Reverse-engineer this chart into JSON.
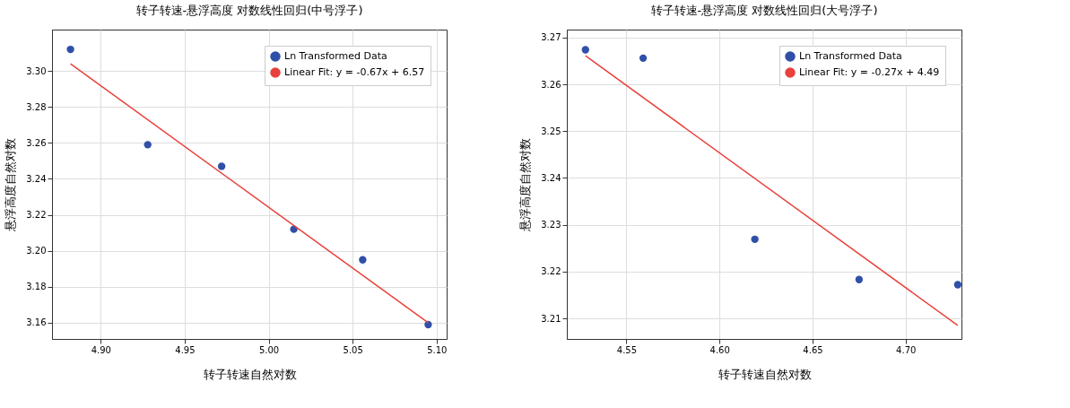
{
  "chart_data": [
    {
      "type": "scatter",
      "title": "转子转速-悬浮高度 对数线性回归(中号浮子)",
      "xlabel": "转子转速自然对数",
      "ylabel": "悬浮高度自然对数",
      "series": [
        {
          "name": "Ln Transformed Data",
          "marker": "circle",
          "color": "#3050a8",
          "x": [
            4.882,
            4.928,
            4.972,
            5.015,
            5.056,
            5.095
          ],
          "values": [
            3.312,
            3.259,
            3.247,
            3.212,
            3.195,
            3.159
          ]
        },
        {
          "name": "Linear Fit: y = -0.67x + 6.57",
          "type": "line",
          "marker": "none",
          "line_style": "solid",
          "color": "#e8413c",
          "x": [
            4.882,
            5.095
          ],
          "values": [
            3.304,
            3.16
          ]
        }
      ],
      "xlim": [
        4.871,
        5.106
      ],
      "ylim": [
        3.151,
        3.323
      ],
      "xticks": [
        {
          "value": 4.9,
          "label": "4.90"
        },
        4.95,
        {
          "value": 5.0,
          "label": "5.00"
        },
        5.05,
        {
          "value": 5.1,
          "label": "5.10"
        }
      ],
      "yticks": [
        3.16,
        3.18,
        {
          "value": 3.2,
          "label": "3.20"
        },
        3.22,
        3.24,
        3.26,
        3.28,
        {
          "value": 3.3,
          "label": "3.30"
        }
      ],
      "grid": true,
      "legend": "top right"
    },
    {
      "type": "scatter",
      "title": "转子转速-悬浮高度 对数线性回归(大号浮子)",
      "xlabel": "转子转速自然对数",
      "ylabel": "悬浮高度自然对数",
      "series": [
        {
          "name": "Ln Transformed Data",
          "marker": "circle",
          "color": "#3050a8",
          "x": [
            4.528,
            4.559,
            4.619,
            4.675,
            4.728
          ],
          "values": [
            3.2674,
            3.2656,
            3.2269,
            3.2183,
            3.2172
          ]
        },
        {
          "name": "Linear Fit: y = -0.27x + 4.49",
          "type": "line",
          "marker": "none",
          "line_style": "solid",
          "color": "#e8413c",
          "x": [
            4.528,
            4.728
          ],
          "values": [
            3.2661,
            3.2085
          ]
        }
      ],
      "xlim": [
        4.518,
        4.73
      ],
      "ylim": [
        3.2056,
        3.2717
      ],
      "xticks": [
        4.55,
        {
          "value": 4.6,
          "label": "4.60"
        },
        4.65,
        {
          "value": 4.7,
          "label": "4.70"
        }
      ],
      "yticks": [
        3.21,
        3.22,
        3.23,
        3.24,
        3.25,
        3.26,
        3.27
      ],
      "grid": true,
      "legend": "top right"
    }
  ]
}
